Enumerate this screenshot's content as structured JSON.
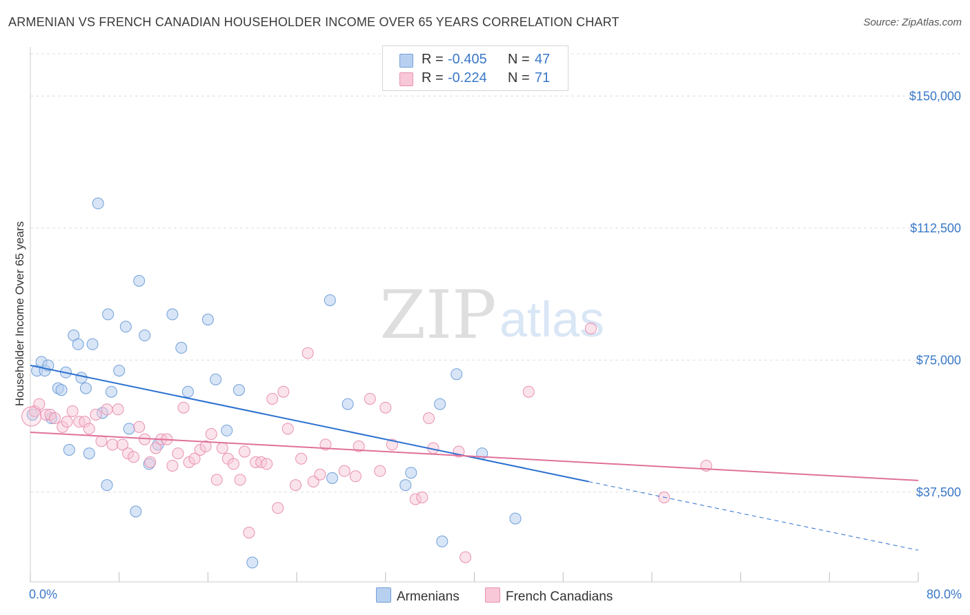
{
  "header": {
    "title": "ARMENIAN VS FRENCH CANADIAN HOUSEHOLDER INCOME OVER 65 YEARS CORRELATION CHART",
    "source": "Source: ZipAtlas.com"
  },
  "watermark": {
    "zip": "ZIP",
    "atlas": "atlas"
  },
  "legend_top": [
    {
      "r_label": "R =",
      "r_value": "-0.405",
      "n_label": "N =",
      "n_value": "47"
    },
    {
      "r_label": "R =",
      "r_value": "-0.224",
      "n_label": "N =",
      "n_value": "71"
    }
  ],
  "legend_bottom": [
    "Armenians",
    "French Canadians"
  ],
  "colors": {
    "armenians_fill": "#b8d0f0",
    "armenians_stroke": "#6f9fd8",
    "armenians_line": "#2a6fd0",
    "french_fill": "#f8c8d8",
    "french_stroke": "#e890b0",
    "french_line": "#e0709a",
    "tick_text": "#3a78c8",
    "grid": "#dddddd"
  },
  "chart_data": {
    "type": "scatter",
    "title": "ARMENIAN VS FRENCH CANADIAN HOUSEHOLDER INCOME OVER 65 YEARS CORRELATION CHART",
    "xlabel": "",
    "ylabel": "Householder Income Over 65 years",
    "xlim": [
      0,
      80
    ],
    "ylim": [
      12000,
      155000
    ],
    "x_tick_labels": [
      "0.0%",
      "80.0%"
    ],
    "y_ticks": [
      37500,
      75000,
      112500,
      150000
    ],
    "y_tick_labels": [
      "$37,500",
      "$75,000",
      "$112,500",
      "$150,000"
    ],
    "grid": true,
    "legend": "top-center",
    "series": [
      {
        "name": "Armenians",
        "r": -0.405,
        "n": 47,
        "trend": {
          "x0": 0,
          "y0": 73500,
          "x1": 50.3,
          "y1": 40500,
          "dashed_to_x": 80,
          "dashed_to_y": 21000
        },
        "points": [
          [
            0.2,
            59500
          ],
          [
            0.6,
            72000
          ],
          [
            1.0,
            74500
          ],
          [
            1.3,
            72000
          ],
          [
            1.6,
            73500
          ],
          [
            1.9,
            58500
          ],
          [
            2.5,
            67000
          ],
          [
            2.8,
            66500
          ],
          [
            3.2,
            71500
          ],
          [
            3.5,
            49500
          ],
          [
            3.9,
            82000
          ],
          [
            4.3,
            79500
          ],
          [
            4.6,
            70000
          ],
          [
            5.0,
            67000
          ],
          [
            5.3,
            48500
          ],
          [
            5.6,
            79500
          ],
          [
            6.1,
            119500
          ],
          [
            6.5,
            60000
          ],
          [
            6.9,
            39500
          ],
          [
            7.0,
            88000
          ],
          [
            7.3,
            66000
          ],
          [
            8.0,
            72000
          ],
          [
            8.6,
            84500
          ],
          [
            8.9,
            55500
          ],
          [
            9.5,
            32000
          ],
          [
            9.8,
            97500
          ],
          [
            10.3,
            82000
          ],
          [
            10.7,
            45500
          ],
          [
            11.5,
            51000
          ],
          [
            12.8,
            88000
          ],
          [
            13.6,
            78500
          ],
          [
            14.2,
            66000
          ],
          [
            16.0,
            86500
          ],
          [
            16.7,
            69500
          ],
          [
            17.7,
            55000
          ],
          [
            18.8,
            66500
          ],
          [
            20.0,
            17500
          ],
          [
            27.0,
            92000
          ],
          [
            28.6,
            62500
          ],
          [
            27.2,
            41500
          ],
          [
            33.8,
            39500
          ],
          [
            34.3,
            43000
          ],
          [
            36.9,
            62500
          ],
          [
            37.1,
            23500
          ],
          [
            38.4,
            71000
          ],
          [
            40.7,
            48500
          ],
          [
            43.7,
            30000
          ]
        ]
      },
      {
        "name": "French Canadians",
        "r": -0.224,
        "n": 71,
        "trend": {
          "x0": 0,
          "y0": 54500,
          "x1": 80,
          "y1": 40800
        },
        "points": [
          [
            0.4,
            60500
          ],
          [
            0.8,
            62500
          ],
          [
            1.4,
            59500
          ],
          [
            1.8,
            59500
          ],
          [
            2.2,
            58500
          ],
          [
            2.9,
            56000
          ],
          [
            3.3,
            57500
          ],
          [
            3.8,
            60500
          ],
          [
            4.4,
            57500
          ],
          [
            4.9,
            57500
          ],
          [
            5.3,
            55500
          ],
          [
            5.9,
            59500
          ],
          [
            6.4,
            52000
          ],
          [
            6.9,
            61000
          ],
          [
            7.4,
            51000
          ],
          [
            7.9,
            61000
          ],
          [
            8.3,
            51000
          ],
          [
            8.8,
            48500
          ],
          [
            9.3,
            47500
          ],
          [
            9.8,
            56000
          ],
          [
            10.3,
            52500
          ],
          [
            10.8,
            46000
          ],
          [
            11.3,
            50000
          ],
          [
            11.8,
            52500
          ],
          [
            12.3,
            52500
          ],
          [
            12.8,
            45000
          ],
          [
            13.3,
            48500
          ],
          [
            13.8,
            61500
          ],
          [
            14.3,
            46000
          ],
          [
            14.8,
            47000
          ],
          [
            15.3,
            49500
          ],
          [
            15.8,
            50500
          ],
          [
            16.3,
            54000
          ],
          [
            16.8,
            41000
          ],
          [
            17.3,
            50000
          ],
          [
            17.8,
            47000
          ],
          [
            18.3,
            45500
          ],
          [
            18.9,
            41000
          ],
          [
            19.3,
            49000
          ],
          [
            19.7,
            26000
          ],
          [
            20.3,
            46000
          ],
          [
            20.8,
            46000
          ],
          [
            21.3,
            45500
          ],
          [
            21.8,
            64000
          ],
          [
            22.3,
            33000
          ],
          [
            22.8,
            66000
          ],
          [
            23.2,
            55500
          ],
          [
            23.9,
            39500
          ],
          [
            24.4,
            47000
          ],
          [
            25.0,
            77000
          ],
          [
            25.5,
            40500
          ],
          [
            26.1,
            42500
          ],
          [
            26.6,
            51000
          ],
          [
            28.3,
            43500
          ],
          [
            29.3,
            42000
          ],
          [
            29.6,
            50500
          ],
          [
            30.6,
            64000
          ],
          [
            31.5,
            43500
          ],
          [
            32.0,
            61500
          ],
          [
            32.6,
            51000
          ],
          [
            34.7,
            35500
          ],
          [
            35.3,
            36000
          ],
          [
            35.9,
            58500
          ],
          [
            36.3,
            50000
          ],
          [
            38.6,
            49000
          ],
          [
            39.2,
            19000
          ],
          [
            44.9,
            66000
          ],
          [
            50.5,
            84000
          ],
          [
            57.1,
            36000
          ],
          [
            60.9,
            45000
          ],
          [
            0.1,
            59000
          ]
        ]
      }
    ]
  }
}
